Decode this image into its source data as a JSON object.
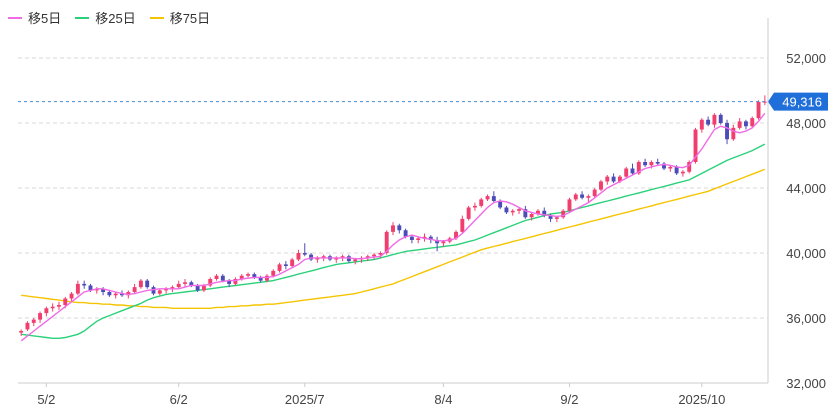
{
  "chart_data": {
    "type": "candlestick",
    "title": "",
    "xlabel": "",
    "ylabel": "",
    "ylim": [
      32000,
      52000
    ],
    "y_ticks": [
      32000,
      36000,
      40000,
      44000,
      48000,
      52000
    ],
    "y_tick_labels": [
      "32,000",
      "36,000",
      "40,000",
      "44,000",
      "48,000",
      "52,000"
    ],
    "x_tick_labels": [
      {
        "label": "5/2",
        "index": 4
      },
      {
        "label": "6/2",
        "index": 25
      },
      {
        "label": "2025/7",
        "index": 45
      },
      {
        "label": "8/4",
        "index": 67
      },
      {
        "label": "9/2",
        "index": 87
      },
      {
        "label": "2025/10",
        "index": 108
      }
    ],
    "grid": true,
    "legend_position": "top-left",
    "last_price": 49316,
    "last_price_label": "49,316",
    "colors": {
      "up": "#f03e6e",
      "down": "#4c4cb8",
      "ma5": "#f06be5",
      "ma25": "#2ad17a",
      "ma75": "#f5c400",
      "price_line": "#4a8fd6",
      "price_badge": "#1e6fd9",
      "grid": "#d9d9d9",
      "axis": "#cccccc"
    },
    "series": [
      {
        "name": "移5日",
        "type": "line",
        "key": "ma5"
      },
      {
        "name": "移25日",
        "type": "line",
        "key": "ma25"
      },
      {
        "name": "移75日",
        "type": "line",
        "key": "ma75"
      }
    ],
    "ohlc": [
      [
        35100,
        35300,
        34900,
        35200
      ],
      [
        35300,
        35800,
        35200,
        35700
      ],
      [
        35700,
        36000,
        35500,
        35900
      ],
      [
        35900,
        36400,
        35700,
        36300
      ],
      [
        36300,
        36700,
        36100,
        36600
      ],
      [
        36600,
        36900,
        36400,
        36700
      ],
      [
        36700,
        37000,
        36500,
        36800
      ],
      [
        36800,
        37300,
        36600,
        37200
      ],
      [
        37200,
        37600,
        37000,
        37500
      ],
      [
        37500,
        38300,
        37400,
        38100
      ],
      [
        38100,
        38300,
        37800,
        38000
      ],
      [
        38000,
        38100,
        37600,
        37700
      ],
      [
        37700,
        37900,
        37500,
        37800
      ],
      [
        37800,
        37900,
        37400,
        37600
      ],
      [
        37600,
        37700,
        37300,
        37400
      ],
      [
        37400,
        37600,
        37200,
        37500
      ],
      [
        37500,
        37700,
        37300,
        37400
      ],
      [
        37400,
        37700,
        37200,
        37600
      ],
      [
        37600,
        38100,
        37500,
        37900
      ],
      [
        37900,
        38400,
        37800,
        38300
      ],
      [
        38300,
        38400,
        37800,
        37900
      ],
      [
        37900,
        38000,
        37400,
        37500
      ],
      [
        37500,
        37800,
        37400,
        37700
      ],
      [
        37700,
        37900,
        37500,
        37800
      ],
      [
        37800,
        38000,
        37600,
        37900
      ],
      [
        37900,
        38300,
        37800,
        38100
      ],
      [
        38100,
        38400,
        37900,
        38200
      ],
      [
        38200,
        38300,
        37900,
        38000
      ],
      [
        38000,
        38100,
        37600,
        37700
      ],
      [
        37700,
        38100,
        37600,
        38000
      ],
      [
        38000,
        38500,
        37900,
        38400
      ],
      [
        38400,
        38700,
        38300,
        38600
      ],
      [
        38600,
        38700,
        38200,
        38300
      ],
      [
        38300,
        38400,
        37900,
        38100
      ],
      [
        38100,
        38500,
        38000,
        38400
      ],
      [
        38400,
        38700,
        38300,
        38600
      ],
      [
        38600,
        38800,
        38500,
        38700
      ],
      [
        38700,
        38800,
        38400,
        38500
      ],
      [
        38500,
        38600,
        38200,
        38300
      ],
      [
        38300,
        38700,
        38200,
        38600
      ],
      [
        38600,
        39000,
        38500,
        38900
      ],
      [
        38900,
        39400,
        38800,
        39300
      ],
      [
        39300,
        39500,
        39000,
        39200
      ],
      [
        39200,
        39700,
        39100,
        39600
      ],
      [
        39600,
        40200,
        39500,
        40000
      ],
      [
        40000,
        40600,
        39800,
        39900
      ],
      [
        39900,
        40000,
        39500,
        39600
      ],
      [
        39600,
        39800,
        39400,
        39700
      ],
      [
        39700,
        39900,
        39500,
        39800
      ],
      [
        39800,
        39900,
        39500,
        39600
      ],
      [
        39600,
        39800,
        39400,
        39700
      ],
      [
        39700,
        39900,
        39500,
        39800
      ],
      [
        39800,
        39900,
        39400,
        39500
      ],
      [
        39500,
        39700,
        39300,
        39600
      ],
      [
        39600,
        39800,
        39400,
        39700
      ],
      [
        39700,
        39900,
        39500,
        39800
      ],
      [
        39800,
        40000,
        39600,
        39900
      ],
      [
        39900,
        40100,
        39700,
        40000
      ],
      [
        40000,
        41400,
        39900,
        41300
      ],
      [
        41300,
        41900,
        41100,
        41700
      ],
      [
        41700,
        41800,
        41200,
        41400
      ],
      [
        41400,
        41500,
        40900,
        41000
      ],
      [
        41000,
        41100,
        40600,
        40800
      ],
      [
        40800,
        41000,
        40600,
        40900
      ],
      [
        40900,
        41200,
        40700,
        41000
      ],
      [
        41000,
        41100,
        40600,
        40800
      ],
      [
        40800,
        41000,
        40100,
        40600
      ],
      [
        40600,
        40800,
        40400,
        40700
      ],
      [
        40700,
        41000,
        40600,
        40900
      ],
      [
        40900,
        41400,
        40800,
        41300
      ],
      [
        41300,
        42300,
        41200,
        42100
      ],
      [
        42100,
        42900,
        42000,
        42800
      ],
      [
        42800,
        43100,
        42600,
        42900
      ],
      [
        42900,
        43400,
        42800,
        43300
      ],
      [
        43300,
        43600,
        43200,
        43500
      ],
      [
        43500,
        43800,
        43100,
        43200
      ],
      [
        43200,
        43300,
        42700,
        42800
      ],
      [
        42800,
        42900,
        42400,
        42500
      ],
      [
        42500,
        42700,
        42300,
        42600
      ],
      [
        42600,
        42800,
        42400,
        42700
      ],
      [
        42700,
        42900,
        42100,
        42200
      ],
      [
        42200,
        42500,
        42000,
        42400
      ],
      [
        42400,
        42700,
        42300,
        42600
      ],
      [
        42600,
        42800,
        42200,
        42300
      ],
      [
        42300,
        42400,
        41900,
        42100
      ],
      [
        42100,
        42300,
        41900,
        42200
      ],
      [
        42200,
        42700,
        42100,
        42600
      ],
      [
        42600,
        43400,
        42500,
        43300
      ],
      [
        43300,
        43700,
        43200,
        43600
      ],
      [
        43600,
        43800,
        43300,
        43400
      ],
      [
        43400,
        43600,
        43100,
        43500
      ],
      [
        43500,
        44000,
        43400,
        43900
      ],
      [
        43900,
        44500,
        43800,
        44400
      ],
      [
        44400,
        44800,
        44200,
        44700
      ],
      [
        44700,
        44900,
        44300,
        44400
      ],
      [
        44400,
        44800,
        44300,
        44700
      ],
      [
        44700,
        45300,
        44600,
        45200
      ],
      [
        45200,
        45500,
        44800,
        44900
      ],
      [
        44900,
        45700,
        44800,
        45600
      ],
      [
        45600,
        45800,
        45300,
        45400
      ],
      [
        45400,
        45700,
        45200,
        45600
      ],
      [
        45600,
        45800,
        45400,
        45500
      ],
      [
        45500,
        45600,
        45100,
        45200
      ],
      [
        45200,
        45400,
        45000,
        45300
      ],
      [
        45300,
        45400,
        44800,
        44900
      ],
      [
        44900,
        45100,
        44700,
        45000
      ],
      [
        45000,
        45700,
        44900,
        45600
      ],
      [
        45600,
        47700,
        45500,
        47600
      ],
      [
        47600,
        48300,
        47400,
        48200
      ],
      [
        48200,
        48400,
        47800,
        47900
      ],
      [
        47900,
        48600,
        47700,
        48500
      ],
      [
        48500,
        48600,
        47900,
        48000
      ],
      [
        48000,
        48200,
        46700,
        47000
      ],
      [
        47000,
        47900,
        46900,
        47700
      ],
      [
        47700,
        48300,
        47600,
        48100
      ],
      [
        48100,
        48200,
        47600,
        47800
      ],
      [
        47800,
        48400,
        47700,
        48300
      ],
      [
        48300,
        49400,
        48200,
        49300
      ],
      [
        49300,
        49700,
        49100,
        49316
      ]
    ],
    "ma5": [
      34600,
      34900,
      35200,
      35500,
      35800,
      36100,
      36400,
      36700,
      37000,
      37300,
      37600,
      37700,
      37800,
      37800,
      37700,
      37600,
      37500,
      37450,
      37500,
      37600,
      37700,
      37750,
      37800,
      37800,
      37800,
      37800,
      37900,
      38000,
      38000,
      38000,
      38100,
      38200,
      38250,
      38300,
      38300,
      38400,
      38450,
      38500,
      38500,
      38500,
      38550,
      38700,
      38900,
      39100,
      39300,
      39600,
      39700,
      39700,
      39700,
      39700,
      39700,
      39700,
      39700,
      39650,
      39650,
      39700,
      39750,
      39800,
      40100,
      40500,
      40800,
      41000,
      41100,
      41000,
      40900,
      40850,
      40750,
      40750,
      40800,
      40900,
      41200,
      41600,
      42000,
      42400,
      42800,
      43100,
      43200,
      43150,
      43000,
      42800,
      42600,
      42500,
      42400,
      42350,
      42300,
      42250,
      42300,
      42500,
      42700,
      42900,
      43100,
      43400,
      43700,
      44000,
      44200,
      44400,
      44600,
      44800,
      45000,
      45200,
      45300,
      45400,
      45450,
      45400,
      45300,
      45250,
      45400,
      45900,
      46400,
      47000,
      47600,
      47800,
      47700,
      47500,
      47400,
      47500,
      47700,
      48100,
      48600
    ],
    "ma25": [
      35000,
      34950,
      34900,
      34850,
      34800,
      34750,
      34750,
      34800,
      34900,
      35000,
      35200,
      35500,
      35800,
      36000,
      36150,
      36300,
      36450,
      36600,
      36750,
      36900,
      37100,
      37250,
      37350,
      37450,
      37500,
      37550,
      37600,
      37650,
      37700,
      37750,
      37800,
      37850,
      37900,
      37950,
      38000,
      38050,
      38100,
      38150,
      38200,
      38250,
      38300,
      38400,
      38500,
      38600,
      38700,
      38800,
      38900,
      39000,
      39100,
      39200,
      39300,
      39350,
      39400,
      39450,
      39500,
      39550,
      39600,
      39700,
      39800,
      39900,
      40000,
      40100,
      40150,
      40200,
      40250,
      40300,
      40350,
      40400,
      40450,
      40500,
      40600,
      40700,
      40800,
      40950,
      41100,
      41250,
      41400,
      41550,
      41700,
      41850,
      42000,
      42100,
      42200,
      42300,
      42400,
      42450,
      42500,
      42600,
      42700,
      42800,
      42900,
      43000,
      43100,
      43200,
      43300,
      43400,
      43500,
      43600,
      43700,
      43800,
      43900,
      44000,
      44100,
      44200,
      44300,
      44400,
      44500,
      44700,
      44900,
      45100,
      45300,
      45500,
      45700,
      45850,
      46000,
      46150,
      46300,
      46500,
      46700
    ],
    "ma75": [
      37400,
      37350,
      37300,
      37250,
      37200,
      37150,
      37100,
      37050,
      37000,
      36950,
      36950,
      36900,
      36900,
      36850,
      36850,
      36800,
      36800,
      36750,
      36750,
      36700,
      36700,
      36650,
      36650,
      36650,
      36600,
      36600,
      36600,
      36600,
      36600,
      36600,
      36600,
      36650,
      36650,
      36700,
      36700,
      36750,
      36750,
      36800,
      36800,
      36850,
      36850,
      36900,
      36950,
      37000,
      37050,
      37100,
      37150,
      37200,
      37250,
      37300,
      37350,
      37400,
      37450,
      37500,
      37600,
      37700,
      37800,
      37900,
      38000,
      38100,
      38250,
      38400,
      38550,
      38700,
      38850,
      39000,
      39150,
      39300,
      39450,
      39600,
      39750,
      39900,
      40050,
      40200,
      40300,
      40400,
      40500,
      40600,
      40700,
      40800,
      40900,
      41000,
      41100,
      41200,
      41300,
      41400,
      41500,
      41600,
      41700,
      41800,
      41900,
      42000,
      42100,
      42200,
      42300,
      42400,
      42500,
      42600,
      42700,
      42800,
      42900,
      43000,
      43100,
      43200,
      43300,
      43400,
      43500,
      43600,
      43700,
      43800,
      43950,
      44100,
      44250,
      44400,
      44550,
      44700,
      44850,
      45000,
      45150
    ]
  },
  "legend": [
    {
      "label": "移5日",
      "color": "#f06be5"
    },
    {
      "label": "移25日",
      "color": "#2ad17a"
    },
    {
      "label": "移75日",
      "color": "#f5c400"
    }
  ]
}
